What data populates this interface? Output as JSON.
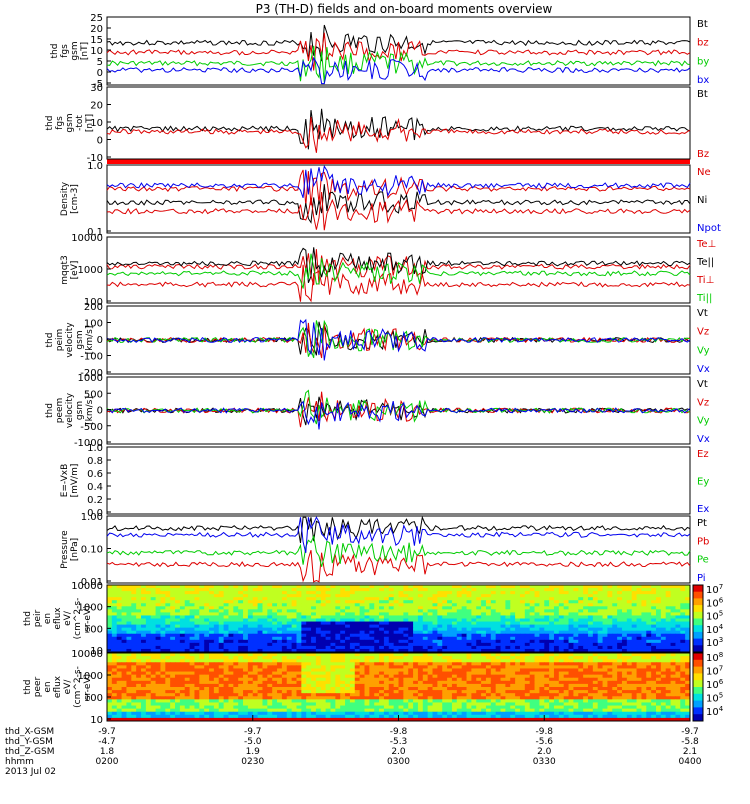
{
  "title": "P3 (TH-D) fields and on-board moments overview",
  "date": "2013 Jul 02",
  "colors": {
    "black": "#000000",
    "red": "#dd0000",
    "green": "#00cc00",
    "blue": "#0000ee"
  },
  "ephemeris": {
    "rows": [
      {
        "label": "thd_X-GSM",
        "values": [
          "-9.7",
          "-9.7",
          "-9.8",
          "-9.8",
          "-9.7"
        ]
      },
      {
        "label": "thd_Y-GSM",
        "values": [
          "-4.7",
          "-5.0",
          "-5.3",
          "-5.6",
          "-5.8"
        ]
      },
      {
        "label": "thd_Z-GSM",
        "values": [
          "1.8",
          "1.9",
          "2.0",
          "2.0",
          "2.1"
        ]
      },
      {
        "label": "hhmm",
        "values": [
          "0200",
          "0230",
          "0300",
          "0330",
          "0400"
        ]
      }
    ]
  },
  "chart_data": [
    {
      "type": "line",
      "ylabel": [
        "thd",
        "fgs",
        "gsm",
        "[nT]"
      ],
      "ylim": [
        -5,
        25
      ],
      "yticks": [
        "25",
        "20",
        "15",
        "10",
        "5",
        "0",
        "-5"
      ],
      "legend": [
        {
          "name": "Bt",
          "color": "black"
        },
        {
          "name": "bz",
          "color": "red"
        },
        {
          "name": "by",
          "color": "green"
        },
        {
          "name": "bx",
          "color": "blue"
        }
      ]
    },
    {
      "type": "line",
      "ylabel": [
        "thd",
        "fgs",
        "gsm",
        "-tot",
        "[nT]"
      ],
      "ylim": [
        -15,
        35
      ],
      "yticks": [
        "30",
        "20",
        "10",
        "0",
        "-10"
      ],
      "legend": [
        {
          "name": "Bt",
          "color": "black"
        },
        {
          "name": "Bz",
          "color": "red"
        }
      ]
    },
    {
      "type": "line",
      "ylabel": [
        "Density",
        "[cm-3]"
      ],
      "ylim": [
        0.1,
        1.3
      ],
      "log": true,
      "yticks": [
        "1.0",
        "0.1"
      ],
      "legend": [
        {
          "name": "Ne",
          "color": "red"
        },
        {
          "name": "Ni",
          "color": "black"
        },
        {
          "name": "Npot",
          "color": "blue"
        }
      ]
    },
    {
      "type": "line",
      "ylabel": [
        "mqqt3",
        "[eV]"
      ],
      "ylim": [
        100,
        15000
      ],
      "log": true,
      "yticks": [
        "10000",
        "1000",
        "100"
      ],
      "legend": [
        {
          "name": "Te⊥",
          "color": "red"
        },
        {
          "name": "Te||",
          "color": "black"
        },
        {
          "name": "Ti⊥",
          "color": "red"
        },
        {
          "name": "Ti||",
          "color": "green"
        }
      ]
    },
    {
      "type": "line",
      "ylabel": [
        "thd",
        "peim",
        "velocity",
        "gsm",
        "[km/s]"
      ],
      "ylim": [
        -200,
        200
      ],
      "yticks": [
        "200",
        "100",
        "0",
        "-100",
        "-200"
      ],
      "legend": [
        {
          "name": "Vt",
          "color": "black"
        },
        {
          "name": "Vz",
          "color": "red"
        },
        {
          "name": "Vy",
          "color": "green"
        },
        {
          "name": "Vx",
          "color": "blue"
        }
      ]
    },
    {
      "type": "line",
      "ylabel": [
        "thd",
        "peem",
        "velocity",
        "gsm",
        "[km/s]"
      ],
      "ylim": [
        -1000,
        1000
      ],
      "yticks": [
        "1000",
        "500",
        "0",
        "-500",
        "-1000"
      ],
      "legend": [
        {
          "name": "Vt",
          "color": "black"
        },
        {
          "name": "Vz",
          "color": "red"
        },
        {
          "name": "Vy",
          "color": "green"
        },
        {
          "name": "Vx",
          "color": "blue"
        }
      ]
    },
    {
      "type": "line",
      "ylabel": [
        "E=-VxB",
        "[mV/m]"
      ],
      "ylim": [
        0,
        1
      ],
      "yticks": [
        "1.0",
        "0.8",
        "0.6",
        "0.4",
        "0.2",
        "0.0"
      ],
      "legend": [
        {
          "name": "Ez",
          "color": "red"
        },
        {
          "name": "Ey",
          "color": "green"
        },
        {
          "name": "Ex",
          "color": "blue"
        }
      ]
    },
    {
      "type": "line",
      "ylabel": [
        "Pressure",
        "[nPa]"
      ],
      "ylim": [
        0.01,
        1.0
      ],
      "log": true,
      "yticks": [
        "1.00",
        "0.10",
        "0.01"
      ],
      "legend": [
        {
          "name": "Pt",
          "color": "black"
        },
        {
          "name": "Pb",
          "color": "red"
        },
        {
          "name": "Pe",
          "color": "green"
        },
        {
          "name": "Pi",
          "color": "blue"
        }
      ]
    },
    {
      "type": "heatmap",
      "ylabel": [
        "thd",
        "peir",
        "en",
        "eflux",
        "eV/",
        "(cm^2-s-",
        "sr-eV)"
      ],
      "yticks": [
        "10000",
        "1000",
        "100",
        "10"
      ],
      "colorbar": [
        "10^7",
        "10^6",
        "10^5",
        "10^4",
        "10^3"
      ]
    },
    {
      "type": "heatmap",
      "ylabel": [
        "thd",
        "peer",
        "en",
        "eflux",
        "eV/",
        "(cm^2-s-",
        "sr-eV)"
      ],
      "yticks": [
        "10000",
        "1000",
        "100",
        "10"
      ],
      "colorbar": [
        "10^8",
        "10^7",
        "10^6",
        "10^5",
        "10^4"
      ]
    }
  ]
}
